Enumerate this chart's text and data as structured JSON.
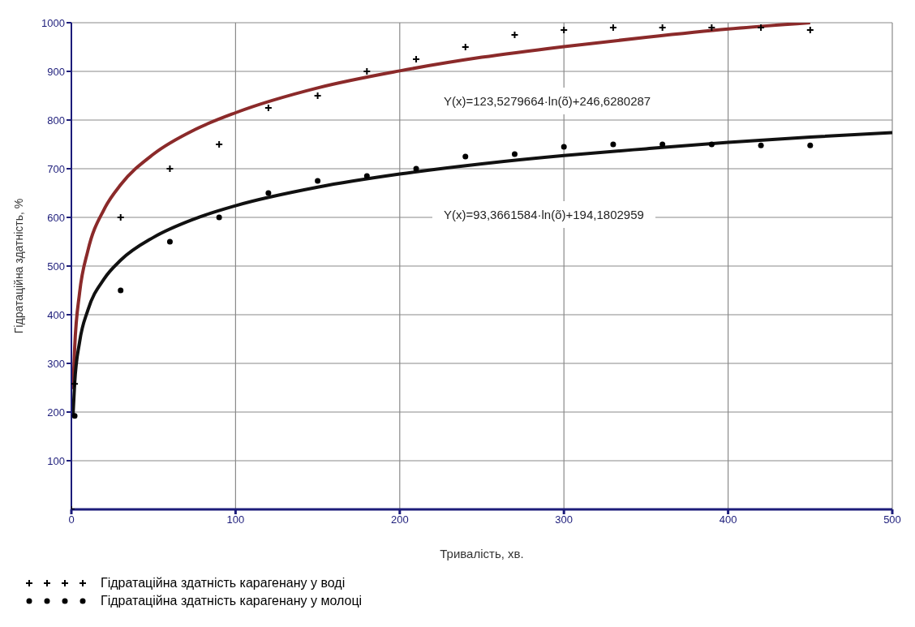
{
  "chart_data": {
    "type": "scatter",
    "xlabel": "Тривалість, хв.",
    "ylabel": "Гідратаційна здатність, %",
    "xlim": [
      0,
      500
    ],
    "xticks": [
      0,
      100,
      200,
      300,
      400,
      500
    ],
    "ylim": [
      0,
      1000
    ],
    "yticks": [
      100,
      200,
      300,
      400,
      500,
      600,
      700,
      800,
      900,
      1000
    ],
    "grid": true,
    "legend": "bottom",
    "annotations": [
      "Y(x)=123,5279664·ln(õ)+246,6280287",
      "Y(x)=93,3661584·ln(õ)+194,1802959"
    ],
    "series": [
      {
        "name": "Гідратаційна здатність карагенану у воді",
        "marker": "cross",
        "color": "#000000",
        "x": [
          0,
          2,
          30,
          60,
          90,
          120,
          150,
          180,
          210,
          240,
          270,
          300,
          330,
          360,
          390,
          420,
          450
        ],
        "values": [
          0,
          258,
          600,
          700,
          750,
          825,
          850,
          900,
          925,
          950,
          975,
          985,
          990,
          990,
          990,
          990,
          985
        ]
      },
      {
        "name": "Гідратаційна здатність карагенану у молоці",
        "marker": "circle",
        "color": "#000000",
        "x": [
          2,
          30,
          60,
          90,
          120,
          150,
          180,
          210,
          240,
          270,
          300,
          330,
          360,
          390,
          420,
          450
        ],
        "values": [
          192,
          450,
          550,
          600,
          650,
          675,
          685,
          700,
          725,
          730,
          745,
          750,
          750,
          750,
          748,
          748
        ]
      },
      {
        "type": "line",
        "marker": "none",
        "color": "#8b2a2a",
        "x": [
          1,
          2,
          5,
          10,
          20,
          30,
          50,
          75,
          100,
          150,
          200,
          250,
          300,
          350,
          400,
          450
        ],
        "values": [
          247,
          332,
          445,
          531,
          617,
          667,
          730,
          780,
          815,
          866,
          901,
          929,
          951,
          970,
          987,
          1000
        ]
      },
      {
        "type": "line",
        "marker": "none",
        "color": "#111111",
        "x": [
          1,
          2,
          5,
          10,
          20,
          30,
          50,
          75,
          100,
          150,
          200,
          250,
          300,
          350,
          400,
          450,
          500
        ],
        "values": [
          194,
          259,
          344,
          409,
          474,
          512,
          559,
          597,
          624,
          662,
          689,
          710,
          727,
          741,
          754,
          765,
          774
        ]
      }
    ]
  }
}
